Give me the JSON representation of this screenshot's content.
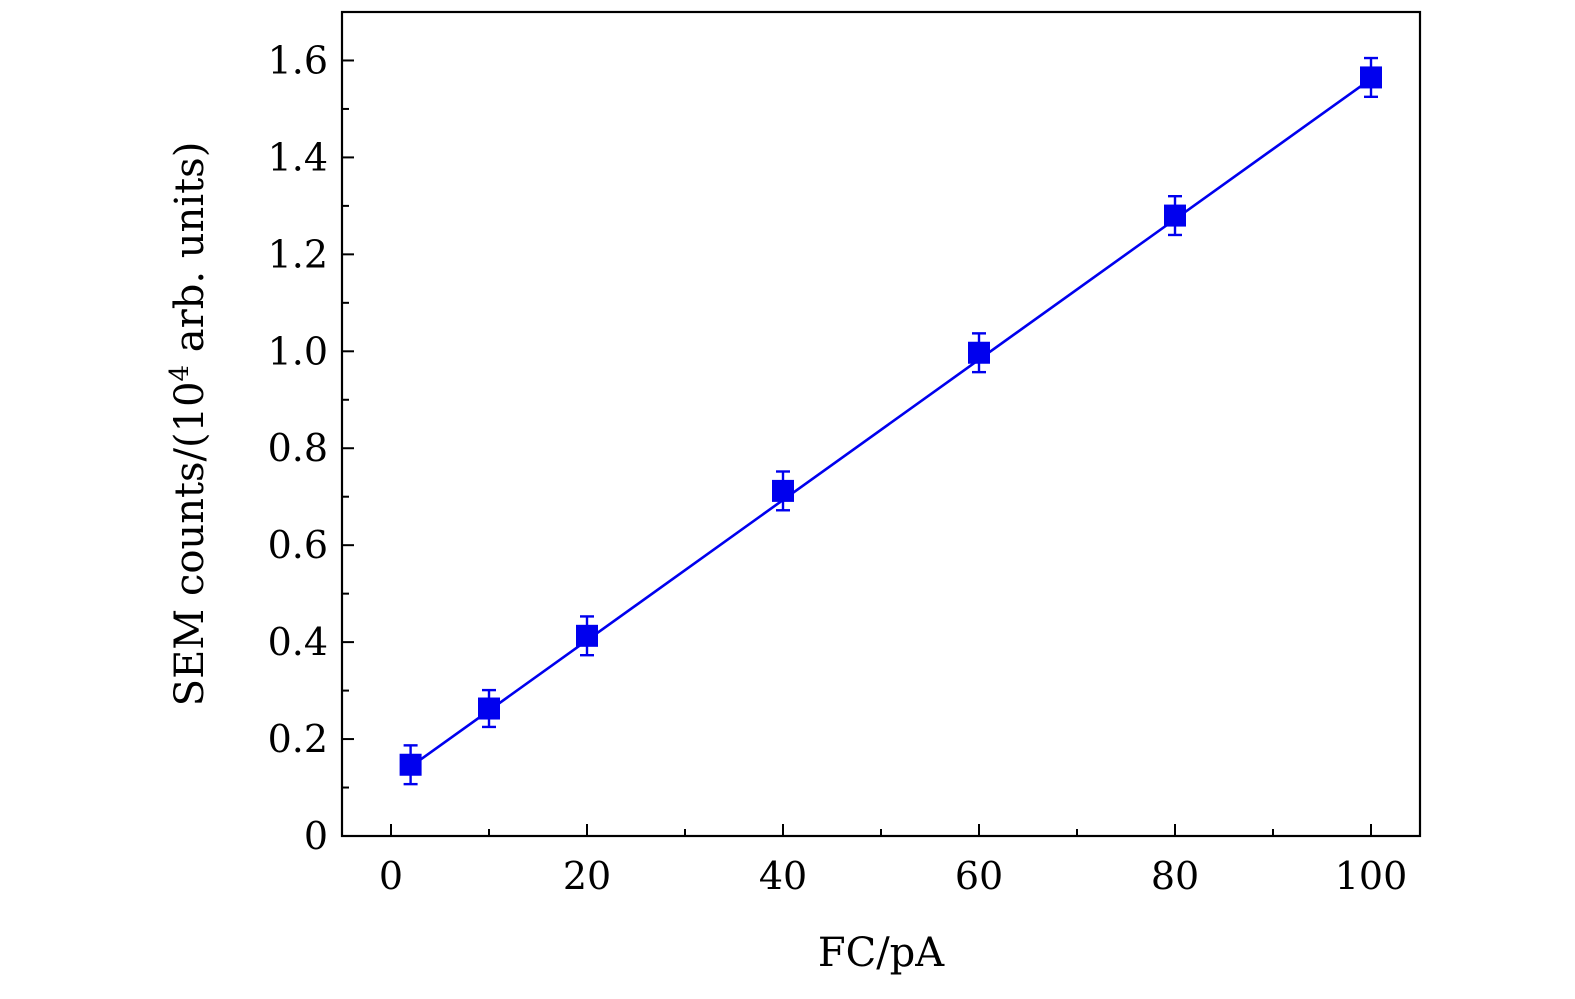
{
  "chart_data": {
    "type": "scatter",
    "title": "",
    "xlabel": "FC/pA",
    "ylabel_parts": {
      "prefix": "SEM counts/(10",
      "exponent": "4",
      "suffix": " arb. units)"
    },
    "xlim": [
      -5,
      105
    ],
    "ylim": [
      0,
      1.7
    ],
    "x_ticks": [
      0,
      20,
      40,
      60,
      80,
      100
    ],
    "x_tick_labels": [
      "0",
      "20",
      "40",
      "60",
      "80",
      "100"
    ],
    "x_minor_ticks": [
      10,
      30,
      50,
      70,
      90
    ],
    "y_ticks": [
      0,
      0.2,
      0.4,
      0.6,
      0.8,
      1.0,
      1.2,
      1.4,
      1.6
    ],
    "y_tick_labels": [
      "0",
      "0.2",
      "0.4",
      "0.6",
      "0.8",
      "1.0",
      "1.2",
      "1.4",
      "1.6"
    ],
    "y_minor_ticks": [
      0.1,
      0.3,
      0.5,
      0.7,
      0.9,
      1.1,
      1.3,
      1.5
    ],
    "grid": false,
    "color": "#0000ee",
    "series": [
      {
        "marker": "square",
        "x": [
          2,
          10,
          20,
          40,
          60,
          80,
          100
        ],
        "y": [
          0.147,
          0.263,
          0.413,
          0.712,
          0.997,
          1.28,
          1.565
        ],
        "yerr": [
          0.04,
          0.038,
          0.04,
          0.04,
          0.04,
          0.04,
          0.04
        ]
      }
    ],
    "fit_line": {
      "x": [
        2,
        100
      ],
      "y": [
        0.143,
        1.562
      ]
    }
  }
}
